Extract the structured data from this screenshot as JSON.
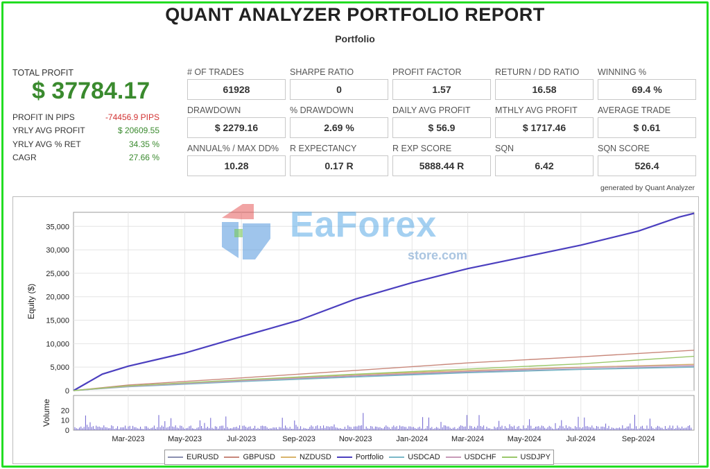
{
  "header": {
    "title": "QUANT ANALYZER PORTFOLIO REPORT",
    "subtitle": "Portfolio"
  },
  "summary": {
    "total_label": "TOTAL PROFIT",
    "total_value": "$ 37784.17",
    "stats": [
      {
        "label": "PROFIT IN PIPS",
        "value": "-74456.9 PIPS",
        "color": "red"
      },
      {
        "label": "YRLY AVG PROFIT",
        "value": "$ 20609.55",
        "color": "green"
      },
      {
        "label": "YRLY AVG % RET",
        "value": "34.35 %",
        "color": "green"
      },
      {
        "label": "CAGR",
        "value": "27.66 %",
        "color": "green"
      }
    ]
  },
  "metrics": [
    {
      "label": "# OF TRADES",
      "value": "61928"
    },
    {
      "label": "SHARPE RATIO",
      "value": "0"
    },
    {
      "label": "PROFIT FACTOR",
      "value": "1.57"
    },
    {
      "label": "RETURN / DD RATIO",
      "value": "16.58"
    },
    {
      "label": "WINNING %",
      "value": "69.4 %"
    },
    {
      "label": "DRAWDOWN",
      "value": "$ 2279.16"
    },
    {
      "label": "% DRAWDOWN",
      "value": "2.69 %"
    },
    {
      "label": "DAILY AVG PROFIT",
      "value": "$ 56.9"
    },
    {
      "label": "MTHLY AVG PROFIT",
      "value": "$ 1717.46"
    },
    {
      "label": "AVERAGE TRADE",
      "value": "$ 0.61"
    },
    {
      "label": "ANNUAL% / MAX DD%",
      "value": "10.28"
    },
    {
      "label": "R EXPECTANCY",
      "value": "0.17 R"
    },
    {
      "label": "R EXP SCORE",
      "value": "5888.44 R"
    },
    {
      "label": "SQN",
      "value": "6.42"
    },
    {
      "label": "SQN SCORE",
      "value": "526.4"
    }
  ],
  "generated_by": "generated by Quant Analyzer",
  "watermark": {
    "brand": "EaForex",
    "sub": "store.com"
  },
  "chart_data": {
    "type": "line",
    "ylabel": "Equity ($)",
    "y2label": "Volume",
    "ylim": [
      0,
      38000
    ],
    "yticks": [
      "0",
      "5,000",
      "10,000",
      "15,000",
      "20,000",
      "25,000",
      "30,000",
      "35,000"
    ],
    "ytick_values": [
      0,
      5000,
      10000,
      15000,
      20000,
      25000,
      30000,
      35000
    ],
    "volume_ylim": [
      0,
      35
    ],
    "volume_yticks": [
      "0",
      "10",
      "20"
    ],
    "volume_ytick_values": [
      0,
      10,
      20
    ],
    "x_start": "2023-01-01",
    "x_end": "2024-10-31",
    "xtick_labels": [
      "Mar-2023",
      "May-2023",
      "Jul-2023",
      "Sep-2023",
      "Nov-2023",
      "Jan-2024",
      "Mar-2024",
      "May-2024",
      "Jul-2024",
      "Sep-2024"
    ],
    "xtick_dates": [
      "2023-03-01",
      "2023-05-01",
      "2023-07-01",
      "2023-09-01",
      "2023-11-01",
      "2024-01-01",
      "2024-03-01",
      "2024-05-01",
      "2024-07-01",
      "2024-09-01"
    ],
    "grid": true,
    "legend_position": "bottom",
    "series": [
      {
        "name": "EURUSD",
        "color": "#8a8fb0",
        "x": [
          "2023-01-01",
          "2023-03-01",
          "2023-07-01",
          "2023-11-01",
          "2024-03-01",
          "2024-07-01",
          "2024-10-31"
        ],
        "y": [
          0,
          900,
          2000,
          3100,
          3900,
          4600,
          5100
        ]
      },
      {
        "name": "GBPUSD",
        "color": "#c8877a",
        "x": [
          "2023-01-01",
          "2023-03-01",
          "2023-07-01",
          "2023-11-01",
          "2024-03-01",
          "2024-07-01",
          "2024-10-31"
        ],
        "y": [
          0,
          1200,
          2700,
          4300,
          5900,
          7200,
          8600
        ]
      },
      {
        "name": "NZDUSD",
        "color": "#d9b36a",
        "x": [
          "2023-01-01",
          "2023-03-01",
          "2023-07-01",
          "2023-11-01",
          "2024-03-01",
          "2024-07-01",
          "2024-10-31"
        ],
        "y": [
          0,
          1000,
          2200,
          3400,
          4300,
          5000,
          5600
        ]
      },
      {
        "name": "Portfolio",
        "color": "#4b3fbf",
        "x": [
          "2023-01-01",
          "2023-02-01",
          "2023-03-01",
          "2023-05-01",
          "2023-07-01",
          "2023-09-01",
          "2023-11-01",
          "2024-01-01",
          "2024-03-01",
          "2024-05-01",
          "2024-07-01",
          "2024-09-01",
          "2024-10-15",
          "2024-10-31"
        ],
        "y": [
          0,
          3500,
          5200,
          8000,
          11500,
          15000,
          19500,
          23000,
          26000,
          28500,
          31000,
          34000,
          37000,
          37784
        ]
      },
      {
        "name": "USDCAD",
        "color": "#7ab8c8",
        "x": [
          "2023-01-01",
          "2023-03-01",
          "2023-07-01",
          "2023-11-01",
          "2024-03-01",
          "2024-07-01",
          "2024-10-31"
        ],
        "y": [
          0,
          800,
          1900,
          2900,
          3800,
          4500,
          5000
        ]
      },
      {
        "name": "USDCHF",
        "color": "#c89ab8",
        "x": [
          "2023-01-01",
          "2023-03-01",
          "2023-07-01",
          "2023-11-01",
          "2024-03-01",
          "2024-07-01",
          "2024-10-31"
        ],
        "y": [
          0,
          900,
          2100,
          3200,
          4100,
          4900,
          5400
        ]
      },
      {
        "name": "USDJPY",
        "color": "#9ac86a",
        "x": [
          "2023-01-01",
          "2023-03-01",
          "2023-07-01",
          "2023-11-01",
          "2024-03-01",
          "2024-07-01",
          "2024-10-31"
        ],
        "y": [
          0,
          1000,
          2300,
          3500,
          4600,
          5700,
          7300
        ]
      }
    ]
  }
}
